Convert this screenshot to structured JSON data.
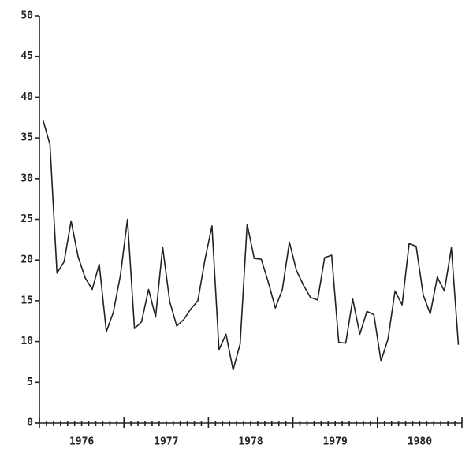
{
  "chart_data": {
    "type": "line",
    "x": [
      1976.042,
      1976.125,
      1976.208,
      1976.292,
      1976.375,
      1976.458,
      1976.542,
      1976.625,
      1976.708,
      1976.792,
      1976.875,
      1976.958,
      1977.042,
      1977.125,
      1977.208,
      1977.292,
      1977.375,
      1977.458,
      1977.542,
      1977.625,
      1977.708,
      1977.792,
      1977.875,
      1977.958,
      1978.042,
      1978.125,
      1978.208,
      1978.292,
      1978.375,
      1978.458,
      1978.542,
      1978.625,
      1978.708,
      1978.792,
      1978.875,
      1978.958,
      1979.042,
      1979.125,
      1979.208,
      1979.292,
      1979.375,
      1979.458,
      1979.542,
      1979.625,
      1979.708,
      1979.792,
      1979.875,
      1979.958,
      1980.042,
      1980.125,
      1980.208,
      1980.292,
      1980.375,
      1980.458,
      1980.542,
      1980.625,
      1980.708,
      1980.792,
      1980.875,
      1980.958
    ],
    "series": [
      {
        "color": "#222222",
        "values": [
          37.2,
          34.2,
          18.4,
          19.8,
          24.8,
          20.4,
          17.8,
          16.4,
          19.5,
          11.2,
          13.6,
          18.1,
          25.0,
          11.6,
          12.4,
          16.4,
          13.0,
          21.6,
          14.9,
          11.9,
          12.7,
          14.0,
          15.0,
          20.0,
          24.2,
          9.0,
          10.9,
          6.5,
          9.7,
          24.4,
          20.2,
          20.1,
          17.3,
          14.1,
          16.4,
          22.2,
          18.7,
          16.9,
          15.4,
          15.1,
          20.3,
          20.6,
          9.9,
          9.8,
          15.2,
          10.9,
          13.7,
          13.3,
          7.6,
          10.3,
          16.2,
          14.5,
          22.0,
          21.7,
          15.7,
          13.4,
          17.9,
          16.2,
          21.5,
          9.6
        ]
      }
    ],
    "xlim": [
      1976,
      1981
    ],
    "xticks": [
      {
        "value": 1976.5,
        "label": "1976"
      },
      {
        "value": 1977.5,
        "label": "1977"
      },
      {
        "value": 1978.5,
        "label": "1978"
      },
      {
        "value": 1979.5,
        "label": "1979"
      },
      {
        "value": 1980.5,
        "label": "1980"
      }
    ],
    "ylim": [
      0,
      50
    ],
    "yticks": [
      0,
      5,
      10,
      15,
      20,
      25,
      30,
      35,
      40,
      45,
      50
    ]
  }
}
